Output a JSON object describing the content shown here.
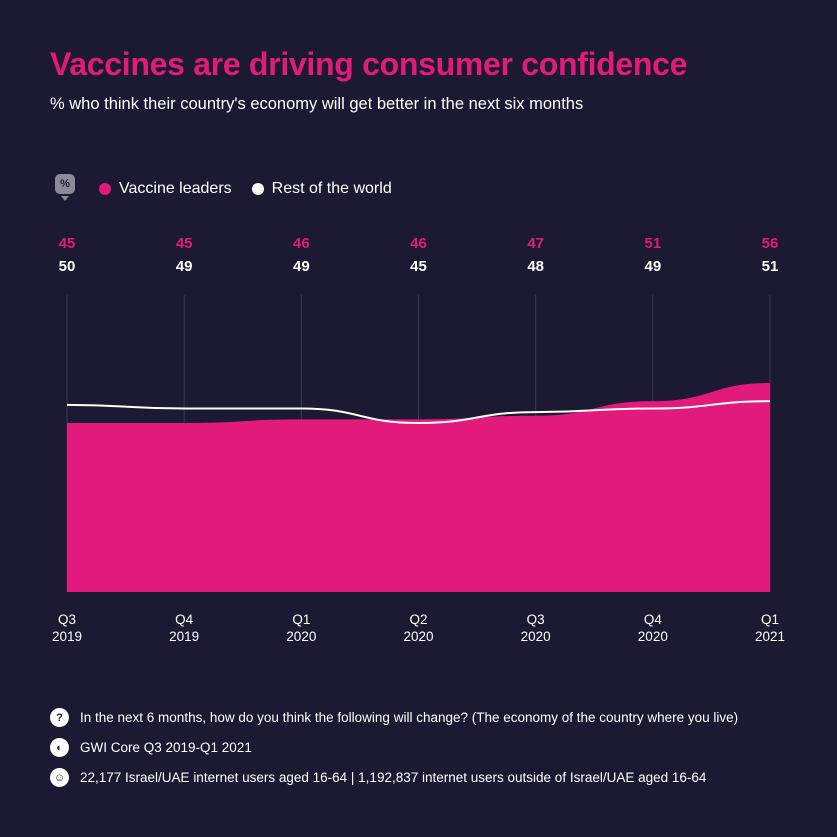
{
  "header": {
    "title": "Vaccines are driving consumer confidence",
    "subtitle": "% who think their country's economy will get better in the next six months"
  },
  "legend": {
    "badge": "%",
    "items": [
      {
        "label": "Vaccine leaders",
        "color": "#e11a7b"
      },
      {
        "label": "Rest of the world",
        "color": "#ffffff"
      }
    ]
  },
  "chart_data": {
    "type": "area",
    "categories": [
      [
        "Q3",
        "2019"
      ],
      [
        "Q4",
        "2019"
      ],
      [
        "Q1",
        "2020"
      ],
      [
        "Q2",
        "2020"
      ],
      [
        "Q3",
        "2020"
      ],
      [
        "Q4",
        "2020"
      ],
      [
        "Q1",
        "2021"
      ]
    ],
    "series": [
      {
        "name": "Vaccine leaders",
        "values": [
          45,
          45,
          46,
          46,
          47,
          51,
          56
        ],
        "color": "#e11a7b",
        "style": "area"
      },
      {
        "name": "Rest of the world",
        "values": [
          50,
          49,
          49,
          45,
          48,
          49,
          51
        ],
        "color": "#ffffff",
        "style": "line"
      }
    ],
    "ylim": [
      0,
      70
    ],
    "grid": "vertical",
    "legend": "top-left"
  },
  "footer": [
    {
      "icon": "question-icon",
      "glyph": "?",
      "text": "In the next 6 months, how do you think the following will change? (The economy of the country where you live)"
    },
    {
      "icon": "source-icon",
      "glyph": "◐",
      "text": "GWI Core Q3 2019-Q1 2021"
    },
    {
      "icon": "people-icon",
      "glyph": "☺",
      "text": "22,177 Israel/UAE internet users aged 16-64 | 1,192,837 internet users outside of Israel/UAE aged 16-64"
    }
  ]
}
